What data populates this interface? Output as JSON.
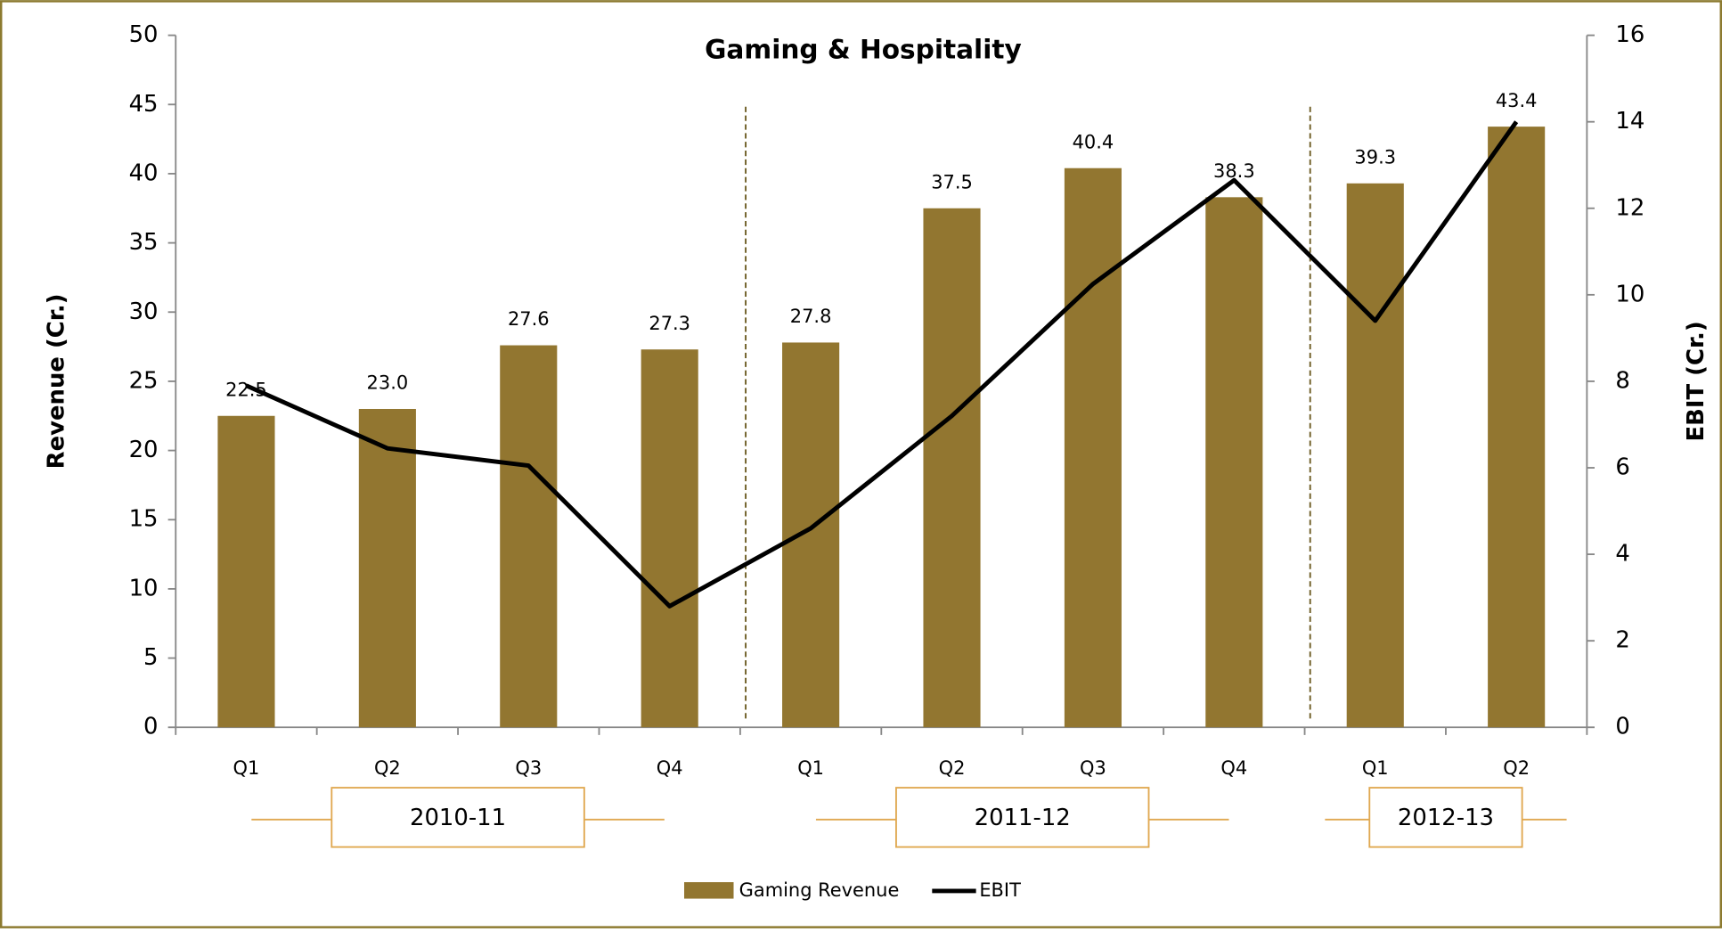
{
  "chart_data": {
    "type": "bar",
    "title": "Gaming & Hospitality",
    "ylabel": "Revenue (Cr.)",
    "y2label": "EBIT (Cr.)",
    "groups": [
      {
        "name": "2010-11",
        "categories": [
          "Q1",
          "Q2",
          "Q3",
          "Q4"
        ]
      },
      {
        "name": "2011-12",
        "categories": [
          "Q1",
          "Q2",
          "Q3",
          "Q4"
        ]
      },
      {
        "name": "2012-13",
        "categories": [
          "Q1",
          "Q2"
        ]
      }
    ],
    "series": [
      {
        "name": "Gaming Revenue",
        "type": "bar",
        "color": "#927630",
        "values": [
          22.5,
          23.0,
          27.6,
          27.3,
          27.8,
          37.5,
          40.4,
          38.3,
          39.3,
          43.4
        ],
        "value_labels": [
          "22.5",
          "23.0",
          "27.6",
          "27.3",
          "27.8",
          "37.5",
          "40.4",
          "38.3",
          "39.3",
          "43.4"
        ]
      },
      {
        "name": "EBIT",
        "type": "line",
        "color": "#000000",
        "axis": "y2",
        "values": [
          7.9,
          6.45,
          6.05,
          2.8,
          4.6,
          7.2,
          10.25,
          12.65,
          9.4,
          14.0
        ]
      }
    ],
    "ylim": [
      0,
      50
    ],
    "yticks": [
      0,
      5,
      10,
      15,
      20,
      25,
      30,
      35,
      40,
      45,
      50
    ],
    "y2lim": [
      0,
      16
    ],
    "y2ticks": [
      0,
      2,
      4,
      6,
      8,
      10,
      12,
      14,
      16
    ],
    "legend": "bottom"
  }
}
